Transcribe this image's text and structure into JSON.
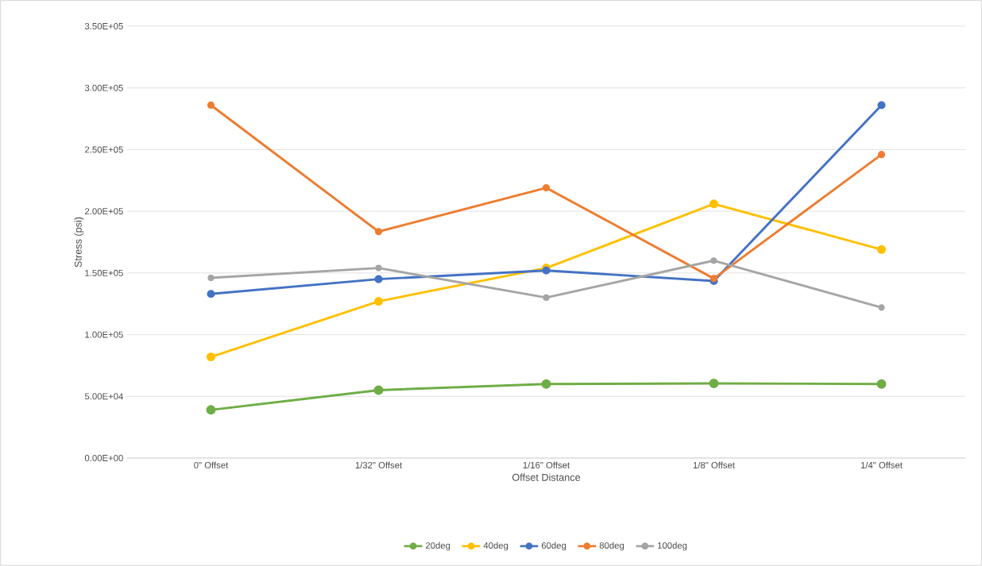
{
  "chart_data": {
    "type": "line",
    "xlabel": "Offset Distance",
    "ylabel": "Stress (psi)",
    "categories": [
      "0\" Offset",
      "1/32\" Offset",
      "1/16\" Offset",
      "1/8\" Offset",
      "1/4\" Offset"
    ],
    "series": [
      {
        "name": "20deg",
        "color": "#70ad47",
        "values": [
          39000,
          55000,
          60000,
          60500,
          60000
        ]
      },
      {
        "name": "40deg",
        "color": "#ffc000",
        "values": [
          82000,
          127000,
          154000,
          206000,
          169000
        ]
      },
      {
        "name": "60deg",
        "color": "#4472c4",
        "values": [
          133000,
          145000,
          152000,
          143500,
          286000
        ]
      },
      {
        "name": "80deg",
        "color": "#ed7d31",
        "values": [
          286000,
          183500,
          219000,
          145500,
          246000
        ]
      },
      {
        "name": "100deg",
        "color": "#a5a5a5",
        "values": [
          146000,
          154000,
          130000,
          160000,
          122000
        ]
      }
    ],
    "ylim": [
      0,
      350000
    ],
    "yticks": [
      {
        "value": 0,
        "label": "0.00E+00"
      },
      {
        "value": 50000,
        "label": "5.00E+04"
      },
      {
        "value": 100000,
        "label": "1.00E+05"
      },
      {
        "value": 150000,
        "label": "1.50E+05"
      },
      {
        "value": 200000,
        "label": "2.00E+05"
      },
      {
        "value": 250000,
        "label": "2.50E+05"
      },
      {
        "value": 300000,
        "label": "3.00E+05"
      },
      {
        "value": 350000,
        "label": "3.50E+05"
      }
    ],
    "grid": "y",
    "legend": "bottom",
    "marker": "circle",
    "line_style": "solid"
  }
}
